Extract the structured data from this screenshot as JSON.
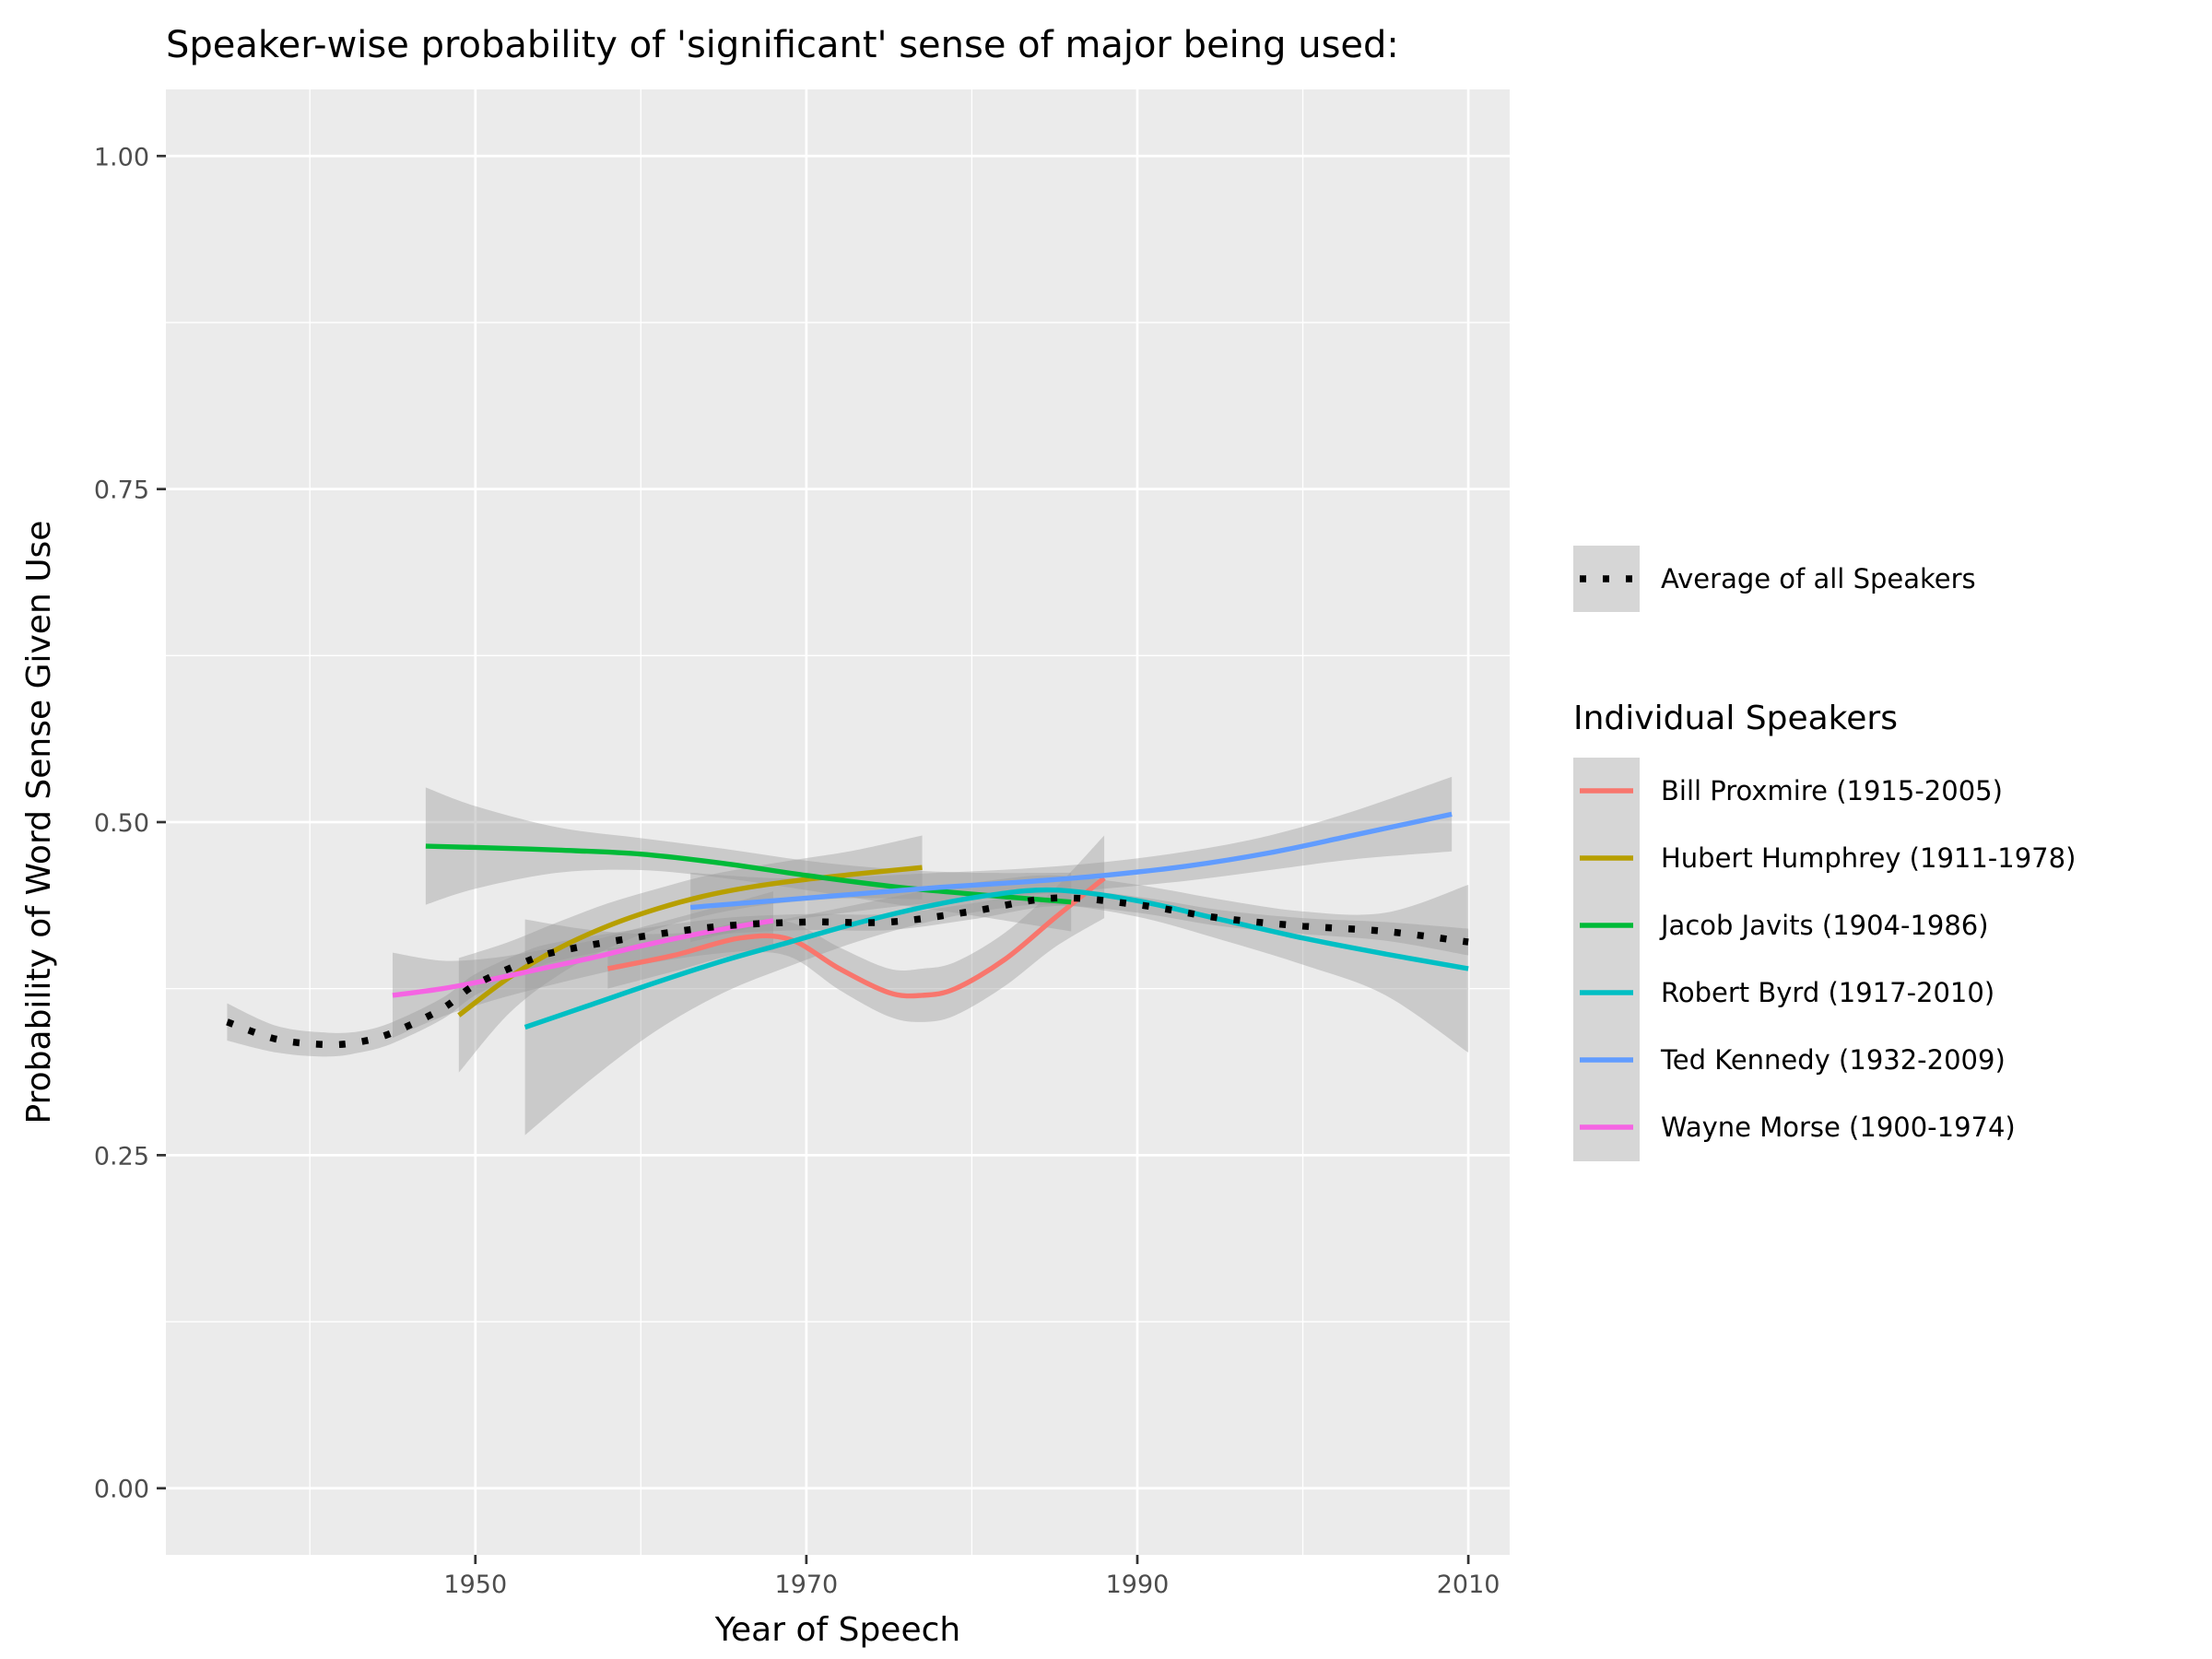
{
  "chart_data": {
    "type": "line",
    "title": "Speaker-wise probability of 'significant' sense of major being used:",
    "xlabel": "Year of Speech",
    "ylabel": "Probability of Word Sense Given Use",
    "xlim": [
      1931.3,
      2012.5
    ],
    "ylim": [
      -0.05,
      1.05
    ],
    "x_ticks": [
      1950,
      1970,
      1990,
      2010
    ],
    "x_tick_labels": [
      "1950",
      "1970",
      "1990",
      "2010"
    ],
    "y_ticks": [
      0.0,
      0.25,
      0.5,
      0.75,
      1.0
    ],
    "y_tick_labels": [
      "0.00",
      "0.25",
      "0.50",
      "0.75",
      "1.00"
    ],
    "grid": true,
    "legend_position": "right",
    "average": {
      "name": "Average of all Speakers",
      "color": "#000000",
      "style": "dotted",
      "points": [
        {
          "x": 1935,
          "y": 0.35,
          "lo": 0.336,
          "hi": 0.364
        },
        {
          "x": 1938,
          "y": 0.337,
          "lo": 0.327,
          "hi": 0.347
        },
        {
          "x": 1941,
          "y": 0.333,
          "lo": 0.324,
          "hi": 0.342
        },
        {
          "x": 1943,
          "y": 0.335,
          "lo": 0.327,
          "hi": 0.343
        },
        {
          "x": 1945,
          "y": 0.342,
          "lo": 0.334,
          "hi": 0.35
        },
        {
          "x": 1948,
          "y": 0.36,
          "lo": 0.352,
          "hi": 0.368
        },
        {
          "x": 1950,
          "y": 0.378,
          "lo": 0.37,
          "hi": 0.386
        },
        {
          "x": 1953,
          "y": 0.395,
          "lo": 0.387,
          "hi": 0.403
        },
        {
          "x": 1955,
          "y": 0.403,
          "lo": 0.396,
          "hi": 0.41
        },
        {
          "x": 1960,
          "y": 0.414,
          "lo": 0.408,
          "hi": 0.42
        },
        {
          "x": 1965,
          "y": 0.422,
          "lo": 0.416,
          "hi": 0.428
        },
        {
          "x": 1970,
          "y": 0.425,
          "lo": 0.419,
          "hi": 0.431
        },
        {
          "x": 1975,
          "y": 0.425,
          "lo": 0.419,
          "hi": 0.431
        },
        {
          "x": 1980,
          "y": 0.433,
          "lo": 0.427,
          "hi": 0.439
        },
        {
          "x": 1985,
          "y": 0.443,
          "lo": 0.437,
          "hi": 0.449
        },
        {
          "x": 1990,
          "y": 0.438,
          "lo": 0.432,
          "hi": 0.444
        },
        {
          "x": 1995,
          "y": 0.428,
          "lo": 0.422,
          "hi": 0.434
        },
        {
          "x": 2000,
          "y": 0.422,
          "lo": 0.416,
          "hi": 0.428
        },
        {
          "x": 2005,
          "y": 0.418,
          "lo": 0.411,
          "hi": 0.425
        },
        {
          "x": 2010,
          "y": 0.41,
          "lo": 0.4,
          "hi": 0.42
        }
      ]
    },
    "legend_title": "Individual Speakers",
    "series": [
      {
        "name": "Bill Proxmire (1915-2005)",
        "color": "#F8766D",
        "points": [
          {
            "x": 1958,
            "y": 0.39,
            "lo": 0.375,
            "hi": 0.405
          },
          {
            "x": 1962,
            "y": 0.4,
            "lo": 0.388,
            "hi": 0.412
          },
          {
            "x": 1966,
            "y": 0.413,
            "lo": 0.401,
            "hi": 0.425
          },
          {
            "x": 1969,
            "y": 0.412,
            "lo": 0.399,
            "hi": 0.425
          },
          {
            "x": 1972,
            "y": 0.39,
            "lo": 0.374,
            "hi": 0.406
          },
          {
            "x": 1975,
            "y": 0.372,
            "lo": 0.354,
            "hi": 0.39
          },
          {
            "x": 1977,
            "y": 0.37,
            "lo": 0.35,
            "hi": 0.39
          },
          {
            "x": 1979,
            "y": 0.375,
            "lo": 0.355,
            "hi": 0.395
          },
          {
            "x": 1982,
            "y": 0.397,
            "lo": 0.377,
            "hi": 0.417
          },
          {
            "x": 1985,
            "y": 0.428,
            "lo": 0.406,
            "hi": 0.45
          },
          {
            "x": 1988,
            "y": 0.458,
            "lo": 0.428,
            "hi": 0.49
          }
        ]
      },
      {
        "name": "Hubert Humphrey (1911-1978)",
        "color": "#B79F00",
        "points": [
          {
            "x": 1949,
            "y": 0.355,
            "lo": 0.312,
            "hi": 0.398
          },
          {
            "x": 1952,
            "y": 0.383,
            "lo": 0.356,
            "hi": 0.41
          },
          {
            "x": 1955,
            "y": 0.405,
            "lo": 0.385,
            "hi": 0.425
          },
          {
            "x": 1958,
            "y": 0.422,
            "lo": 0.405,
            "hi": 0.439
          },
          {
            "x": 1961,
            "y": 0.435,
            "lo": 0.42,
            "hi": 0.45
          },
          {
            "x": 1964,
            "y": 0.445,
            "lo": 0.43,
            "hi": 0.46
          },
          {
            "x": 1967,
            "y": 0.452,
            "lo": 0.437,
            "hi": 0.467
          },
          {
            "x": 1970,
            "y": 0.457,
            "lo": 0.441,
            "hi": 0.473
          },
          {
            "x": 1973,
            "y": 0.461,
            "lo": 0.443,
            "hi": 0.479
          },
          {
            "x": 1977,
            "y": 0.466,
            "lo": 0.442,
            "hi": 0.49
          }
        ]
      },
      {
        "name": "Jacob Javits (1904-1986)",
        "color": "#00BA38",
        "points": [
          {
            "x": 1947,
            "y": 0.482,
            "lo": 0.438,
            "hi": 0.526
          },
          {
            "x": 1950,
            "y": 0.481,
            "lo": 0.45,
            "hi": 0.512
          },
          {
            "x": 1955,
            "y": 0.479,
            "lo": 0.462,
            "hi": 0.496
          },
          {
            "x": 1960,
            "y": 0.476,
            "lo": 0.464,
            "hi": 0.488
          },
          {
            "x": 1965,
            "y": 0.469,
            "lo": 0.458,
            "hi": 0.48
          },
          {
            "x": 1970,
            "y": 0.46,
            "lo": 0.449,
            "hi": 0.471
          },
          {
            "x": 1975,
            "y": 0.452,
            "lo": 0.439,
            "hi": 0.465
          },
          {
            "x": 1980,
            "y": 0.446,
            "lo": 0.43,
            "hi": 0.462
          },
          {
            "x": 1986,
            "y": 0.44,
            "lo": 0.418,
            "hi": 0.462
          }
        ]
      },
      {
        "name": "Robert Byrd (1917-2010)",
        "color": "#00BFC4",
        "points": [
          {
            "x": 1953,
            "y": 0.346,
            "lo": 0.265,
            "hi": 0.427
          },
          {
            "x": 1957,
            "y": 0.363,
            "lo": 0.307,
            "hi": 0.419
          },
          {
            "x": 1961,
            "y": 0.38,
            "lo": 0.344,
            "hi": 0.416
          },
          {
            "x": 1965,
            "y": 0.396,
            "lo": 0.372,
            "hi": 0.42
          },
          {
            "x": 1969,
            "y": 0.41,
            "lo": 0.392,
            "hi": 0.428
          },
          {
            "x": 1973,
            "y": 0.424,
            "lo": 0.41,
            "hi": 0.438
          },
          {
            "x": 1977,
            "y": 0.436,
            "lo": 0.424,
            "hi": 0.448
          },
          {
            "x": 1981,
            "y": 0.445,
            "lo": 0.434,
            "hi": 0.456
          },
          {
            "x": 1985,
            "y": 0.449,
            "lo": 0.438,
            "hi": 0.46
          },
          {
            "x": 1990,
            "y": 0.441,
            "lo": 0.429,
            "hi": 0.453
          },
          {
            "x": 1995,
            "y": 0.427,
            "lo": 0.412,
            "hi": 0.442
          },
          {
            "x": 2000,
            "y": 0.413,
            "lo": 0.393,
            "hi": 0.433
          },
          {
            "x": 2005,
            "y": 0.401,
            "lo": 0.37,
            "hi": 0.432
          },
          {
            "x": 2010,
            "y": 0.39,
            "lo": 0.327,
            "hi": 0.453
          }
        ]
      },
      {
        "name": "Ted Kennedy (1932-2009)",
        "color": "#619CFF",
        "points": [
          {
            "x": 1963,
            "y": 0.436,
            "lo": 0.41,
            "hi": 0.462
          },
          {
            "x": 1968,
            "y": 0.441,
            "lo": 0.424,
            "hi": 0.458
          },
          {
            "x": 1973,
            "y": 0.446,
            "lo": 0.433,
            "hi": 0.459
          },
          {
            "x": 1978,
            "y": 0.451,
            "lo": 0.44,
            "hi": 0.462
          },
          {
            "x": 1983,
            "y": 0.455,
            "lo": 0.445,
            "hi": 0.465
          },
          {
            "x": 1988,
            "y": 0.46,
            "lo": 0.45,
            "hi": 0.47
          },
          {
            "x": 1993,
            "y": 0.467,
            "lo": 0.456,
            "hi": 0.478
          },
          {
            "x": 1998,
            "y": 0.477,
            "lo": 0.464,
            "hi": 0.49
          },
          {
            "x": 2003,
            "y": 0.49,
            "lo": 0.472,
            "hi": 0.508
          },
          {
            "x": 2009,
            "y": 0.506,
            "lo": 0.478,
            "hi": 0.534
          }
        ]
      },
      {
        "name": "Wayne Morse (1900-1974)",
        "color": "#F564E3",
        "points": [
          {
            "x": 1945,
            "y": 0.37,
            "lo": 0.338,
            "hi": 0.402
          },
          {
            "x": 1948,
            "y": 0.375,
            "lo": 0.354,
            "hi": 0.396
          },
          {
            "x": 1951,
            "y": 0.382,
            "lo": 0.366,
            "hi": 0.398
          },
          {
            "x": 1954,
            "y": 0.39,
            "lo": 0.376,
            "hi": 0.404
          },
          {
            "x": 1957,
            "y": 0.398,
            "lo": 0.385,
            "hi": 0.411
          },
          {
            "x": 1960,
            "y": 0.407,
            "lo": 0.393,
            "hi": 0.421
          },
          {
            "x": 1963,
            "y": 0.415,
            "lo": 0.399,
            "hi": 0.431
          },
          {
            "x": 1966,
            "y": 0.422,
            "lo": 0.403,
            "hi": 0.441
          },
          {
            "x": 1968,
            "y": 0.426,
            "lo": 0.404,
            "hi": 0.448
          }
        ]
      }
    ],
    "band_color": "#999999",
    "panel_background": "#EBEBEB"
  }
}
